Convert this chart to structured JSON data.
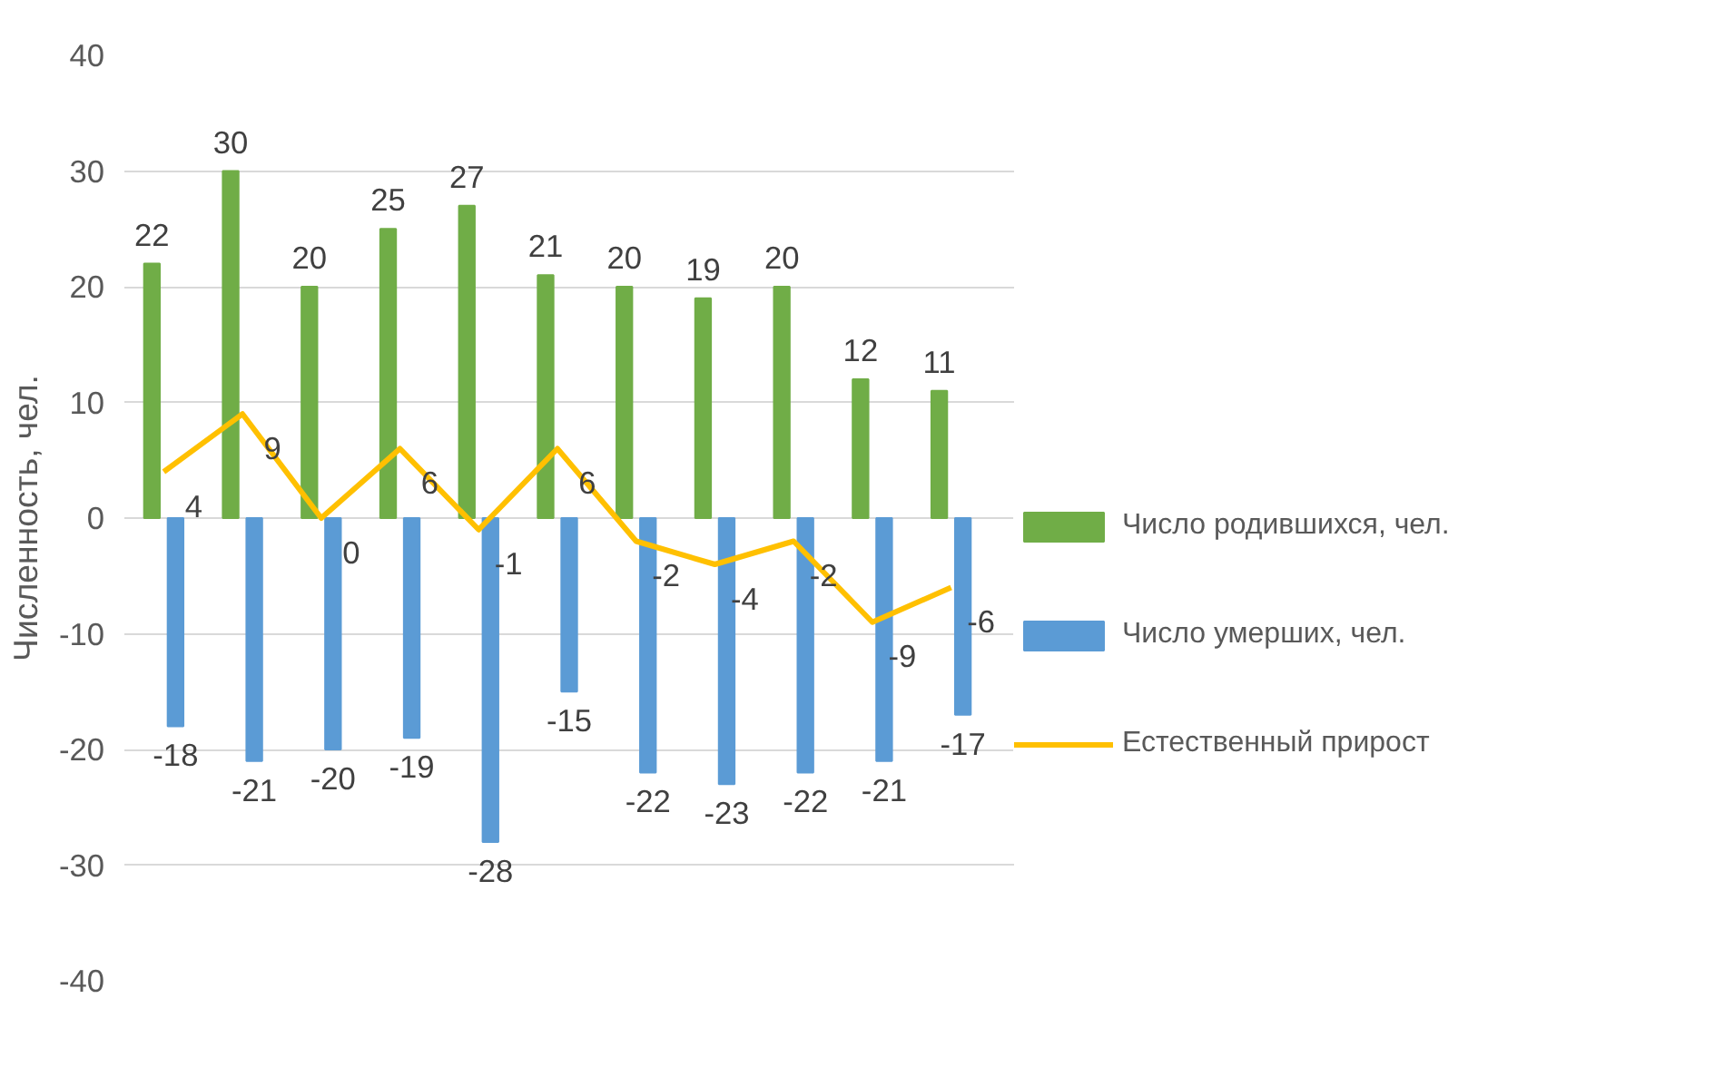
{
  "chart_data": {
    "type": "bar",
    "ylabel": "Численность, чел.",
    "categories": [
      null,
      null,
      null,
      null,
      null,
      null,
      null,
      null,
      null,
      null,
      null
    ],
    "series": [
      {
        "name": "Число родившихся, чел.",
        "color": "#70ad47",
        "values": [
          22,
          30,
          20,
          25,
          27,
          21,
          20,
          19,
          20,
          12,
          11
        ]
      },
      {
        "name": "Число умерших, чел.",
        "color": "#5b9bd5",
        "values": [
          -18,
          -21,
          -20,
          -19,
          -28,
          -15,
          -22,
          -23,
          -22,
          -21,
          -17
        ]
      },
      {
        "name": "Естественный прирост",
        "type": "line",
        "color": "#ffc000",
        "values": [
          4,
          9,
          0,
          6,
          -1,
          6,
          -2,
          -4,
          -2,
          -9,
          -6
        ]
      }
    ],
    "ylim": [
      -40,
      40
    ],
    "yticks": [
      -40,
      -30,
      -20,
      -10,
      0,
      10,
      20,
      30,
      40
    ],
    "grid": "y",
    "legend": "right",
    "data_labels": true,
    "tick_labels": "y",
    "marker": "none",
    "line_style": "solid"
  }
}
